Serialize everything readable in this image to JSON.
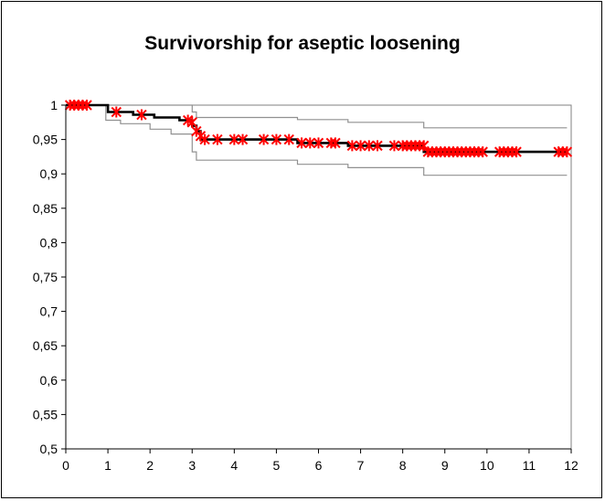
{
  "chart_data": {
    "type": "line",
    "title": "Survivorship for aseptic loosening",
    "xlabel": "",
    "ylabel": "",
    "xlim": [
      0,
      12
    ],
    "ylim": [
      0.5,
      1
    ],
    "x_ticks": [
      "0",
      "1",
      "2",
      "3",
      "4",
      "5",
      "6",
      "7",
      "8",
      "9",
      "10",
      "11",
      "12"
    ],
    "y_ticks": [
      "0,5",
      "0,55",
      "0,6",
      "0,65",
      "0,7",
      "0,75",
      "0,8",
      "0,85",
      "0,9",
      "0,95",
      "1"
    ],
    "grid": false,
    "legend": "none",
    "series": [
      {
        "role": "estimate",
        "color": "#000000",
        "points": [
          [
            0,
            1
          ],
          [
            1.0,
            1
          ],
          [
            1.0,
            0.99
          ],
          [
            1.6,
            0.99
          ],
          [
            1.6,
            0.986
          ],
          [
            2.1,
            0.986
          ],
          [
            2.1,
            0.982
          ],
          [
            2.7,
            0.982
          ],
          [
            2.7,
            0.978
          ],
          [
            3.0,
            0.978
          ],
          [
            3.0,
            0.97
          ],
          [
            3.1,
            0.97
          ],
          [
            3.1,
            0.962
          ],
          [
            3.2,
            0.962
          ],
          [
            3.2,
            0.95
          ],
          [
            5.5,
            0.95
          ],
          [
            5.5,
            0.945
          ],
          [
            6.7,
            0.945
          ],
          [
            6.7,
            0.941
          ],
          [
            8.5,
            0.941
          ],
          [
            8.5,
            0.932
          ],
          [
            11.9,
            0.932
          ]
        ]
      },
      {
        "role": "upper-ci",
        "color": "#909090",
        "points": [
          [
            0,
            1
          ],
          [
            3.0,
            1
          ],
          [
            3.0,
            0.99
          ],
          [
            3.1,
            0.99
          ],
          [
            3.1,
            0.982
          ],
          [
            5.5,
            0.982
          ],
          [
            5.5,
            0.979
          ],
          [
            6.7,
            0.979
          ],
          [
            6.7,
            0.975
          ],
          [
            8.5,
            0.975
          ],
          [
            8.5,
            0.967
          ],
          [
            11.9,
            0.967
          ]
        ]
      },
      {
        "role": "lower-ci",
        "color": "#909090",
        "points": [
          [
            0,
            1
          ],
          [
            0.95,
            1
          ],
          [
            0.95,
            0.978
          ],
          [
            1.3,
            0.978
          ],
          [
            1.3,
            0.973
          ],
          [
            2.0,
            0.973
          ],
          [
            2.0,
            0.965
          ],
          [
            2.5,
            0.965
          ],
          [
            2.5,
            0.958
          ],
          [
            3.0,
            0.958
          ],
          [
            3.0,
            0.932
          ],
          [
            3.1,
            0.932
          ],
          [
            3.1,
            0.92
          ],
          [
            5.5,
            0.92
          ],
          [
            5.5,
            0.914
          ],
          [
            6.7,
            0.914
          ],
          [
            6.7,
            0.909
          ],
          [
            8.5,
            0.909
          ],
          [
            8.5,
            0.898
          ],
          [
            11.9,
            0.898
          ]
        ]
      }
    ],
    "censored": {
      "marker": "asterisk",
      "color": "#ff0000",
      "points": [
        [
          0.1,
          1
        ],
        [
          0.2,
          1
        ],
        [
          0.3,
          1
        ],
        [
          0.4,
          1
        ],
        [
          0.5,
          1
        ],
        [
          1.2,
          0.99
        ],
        [
          1.8,
          0.986
        ],
        [
          2.9,
          0.978
        ],
        [
          3.0,
          0.975
        ],
        [
          3.1,
          0.962
        ],
        [
          3.2,
          0.955
        ],
        [
          3.3,
          0.95
        ],
        [
          3.6,
          0.95
        ],
        [
          4.0,
          0.95
        ],
        [
          4.2,
          0.95
        ],
        [
          4.7,
          0.95
        ],
        [
          5.0,
          0.95
        ],
        [
          5.3,
          0.95
        ],
        [
          5.6,
          0.945
        ],
        [
          5.8,
          0.945
        ],
        [
          6.0,
          0.945
        ],
        [
          6.3,
          0.945
        ],
        [
          6.4,
          0.945
        ],
        [
          6.8,
          0.941
        ],
        [
          7.0,
          0.941
        ],
        [
          7.2,
          0.941
        ],
        [
          7.4,
          0.941
        ],
        [
          7.8,
          0.941
        ],
        [
          8.0,
          0.941
        ],
        [
          8.1,
          0.941
        ],
        [
          8.2,
          0.941
        ],
        [
          8.3,
          0.941
        ],
        [
          8.4,
          0.941
        ],
        [
          8.5,
          0.941
        ],
        [
          8.6,
          0.932
        ],
        [
          8.7,
          0.932
        ],
        [
          8.8,
          0.932
        ],
        [
          8.9,
          0.932
        ],
        [
          9.0,
          0.932
        ],
        [
          9.1,
          0.932
        ],
        [
          9.2,
          0.932
        ],
        [
          9.3,
          0.932
        ],
        [
          9.4,
          0.932
        ],
        [
          9.5,
          0.932
        ],
        [
          9.6,
          0.932
        ],
        [
          9.7,
          0.932
        ],
        [
          9.8,
          0.932
        ],
        [
          9.9,
          0.932
        ],
        [
          10.3,
          0.932
        ],
        [
          10.4,
          0.932
        ],
        [
          10.5,
          0.932
        ],
        [
          10.6,
          0.932
        ],
        [
          10.7,
          0.932
        ],
        [
          11.7,
          0.932
        ],
        [
          11.8,
          0.932
        ],
        [
          11.9,
          0.932
        ]
      ]
    }
  }
}
